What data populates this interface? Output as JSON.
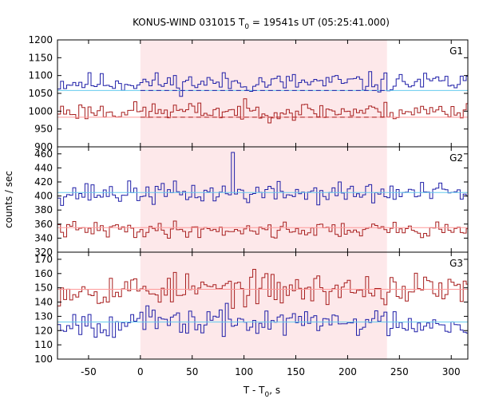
{
  "title": {
    "prefix": "KONUS-WIND 031015 T",
    "sub": "0",
    "suffix": " = 19541s UT (05:25:41.000)"
  },
  "xlabel": {
    "prefix": "T - T",
    "sub": "0",
    "suffix": ", s"
  },
  "ylabel": "counts / sec",
  "colors": {
    "blue": "#1f1fa8",
    "red": "#a81f1f",
    "bg_blue": "#66ccee",
    "bg_red": "#ff9999",
    "shade": "#fde8ea"
  },
  "chart_data": {
    "type": "line",
    "xlim": [
      -80,
      316
    ],
    "xticks": [
      -50,
      0,
      50,
      100,
      150,
      200,
      250,
      300
    ],
    "shaded_interval": [
      0,
      238
    ],
    "bin_width": 2.944,
    "panels": [
      {
        "label": "G1",
        "ylim": [
          900,
          1200
        ],
        "yticks": [
          900,
          950,
          1000,
          1050,
          1100,
          1150,
          1200
        ],
        "series": [
          {
            "color": "blue",
            "level": 1080,
            "noise": 20,
            "seed": 11,
            "background": 1058
          },
          {
            "color": "red",
            "level": 1000,
            "noise": 18,
            "seed": 23,
            "background": 983
          }
        ]
      },
      {
        "label": "G2",
        "ylim": [
          320,
          470
        ],
        "yticks": [
          320,
          340,
          360,
          380,
          400,
          420,
          440,
          460
        ],
        "series": [
          {
            "color": "blue",
            "level": 404,
            "noise": 11,
            "seed": 37,
            "background": 405,
            "spike": {
              "x": 89,
              "value": 462
            }
          },
          {
            "color": "red",
            "level": 352,
            "noise": 8,
            "seed": 41,
            "background": 355
          }
        ]
      },
      {
        "label": "G3",
        "ylim": [
          100,
          175
        ],
        "yticks": [
          100,
          110,
          120,
          130,
          140,
          150,
          160,
          170
        ],
        "series": [
          {
            "color": "red",
            "level": 149,
            "noise": 8,
            "seed": 53,
            "background": 149
          },
          {
            "color": "blue",
            "level": 126,
            "noise": 7,
            "seed": 67,
            "background": 126
          }
        ]
      }
    ]
  }
}
